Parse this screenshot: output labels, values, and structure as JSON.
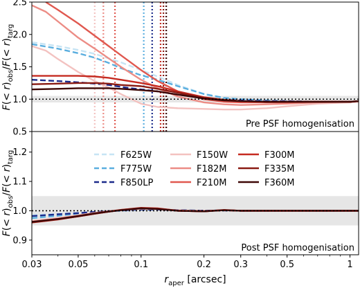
{
  "chart_data": [
    {
      "type": "line",
      "panel": "top",
      "annotation": "Pre PSF homogenisation",
      "ylabel": "F(<r)obs/F(<r)targ",
      "xscale": "log",
      "xlim": [
        0.03,
        1.1
      ],
      "ylim": [
        0.5,
        2.5
      ],
      "yticks": [
        "0.5",
        "1.0",
        "1.5",
        "2.0",
        "2.5"
      ],
      "reference_line": 1.0,
      "band": [
        0.95,
        1.05
      ],
      "series": [
        {
          "name": "F625W",
          "style": "dashed",
          "color": "#c6e4f4",
          "x": [
            0.03,
            0.04,
            0.05,
            0.06,
            0.07,
            0.08,
            0.1,
            0.12,
            0.15,
            0.2,
            0.25,
            0.3,
            0.4,
            0.5,
            0.7,
            1.0,
            1.1
          ],
          "y": [
            1.88,
            1.82,
            1.76,
            1.7,
            1.63,
            1.57,
            1.45,
            1.35,
            1.22,
            1.08,
            1.02,
            0.99,
            0.97,
            0.96,
            0.96,
            0.96,
            0.97
          ]
        },
        {
          "name": "F775W",
          "style": "dashed",
          "color": "#5aaedf",
          "x": [
            0.03,
            0.04,
            0.05,
            0.06,
            0.07,
            0.08,
            0.1,
            0.12,
            0.15,
            0.2,
            0.25,
            0.3,
            0.4,
            0.5,
            0.7,
            1.0,
            1.1
          ],
          "y": [
            1.85,
            1.78,
            1.71,
            1.64,
            1.56,
            1.48,
            1.37,
            1.3,
            1.2,
            1.08,
            1.02,
            1.0,
            0.98,
            0.97,
            0.96,
            0.96,
            0.97
          ]
        },
        {
          "name": "F850LP",
          "style": "dashed",
          "color": "#1b2a8a",
          "x": [
            0.03,
            0.04,
            0.05,
            0.06,
            0.07,
            0.08,
            0.1,
            0.12,
            0.15,
            0.2,
            0.25,
            0.3,
            0.4,
            0.5,
            0.7,
            1.0,
            1.1
          ],
          "y": [
            1.3,
            1.28,
            1.26,
            1.24,
            1.22,
            1.19,
            1.15,
            1.12,
            1.07,
            1.02,
            0.99,
            0.98,
            0.97,
            0.97,
            0.96,
            0.96,
            0.97
          ]
        },
        {
          "name": "F150W",
          "style": "solid",
          "color": "#f3c2c0",
          "x": [
            0.03,
            0.035,
            0.04,
            0.05,
            0.06,
            0.07,
            0.08,
            0.09,
            0.1,
            0.12,
            0.15,
            0.2,
            0.25,
            0.3,
            0.4,
            0.5,
            0.7,
            1.0,
            1.1
          ],
          "y": [
            1.82,
            1.75,
            1.62,
            1.42,
            1.28,
            1.18,
            1.08,
            1.0,
            0.93,
            0.88,
            0.86,
            0.85,
            0.84,
            0.84,
            0.86,
            0.89,
            0.93,
            0.95,
            0.96
          ]
        },
        {
          "name": "F182M",
          "style": "solid",
          "color": "#ec8c85",
          "x": [
            0.03,
            0.035,
            0.04,
            0.05,
            0.06,
            0.07,
            0.08,
            0.1,
            0.12,
            0.15,
            0.2,
            0.25,
            0.3,
            0.4,
            0.5,
            0.7,
            1.0,
            1.1
          ],
          "y": [
            2.45,
            2.35,
            2.2,
            1.95,
            1.78,
            1.63,
            1.5,
            1.3,
            1.17,
            1.04,
            0.95,
            0.92,
            0.91,
            0.92,
            0.93,
            0.95,
            0.96,
            0.97
          ]
        },
        {
          "name": "F210M",
          "style": "solid",
          "color": "#e0584f",
          "x": [
            0.035,
            0.04,
            0.05,
            0.06,
            0.07,
            0.08,
            0.1,
            0.12,
            0.15,
            0.2,
            0.25,
            0.3,
            0.4,
            0.5,
            0.7,
            1.0,
            1.1
          ],
          "y": [
            2.5,
            2.38,
            2.17,
            1.98,
            1.82,
            1.68,
            1.45,
            1.28,
            1.12,
            1.0,
            0.96,
            0.95,
            0.95,
            0.95,
            0.96,
            0.96,
            0.97
          ]
        },
        {
          "name": "F300M",
          "style": "solid",
          "color": "#c52a20",
          "x": [
            0.03,
            0.04,
            0.05,
            0.06,
            0.07,
            0.08,
            0.1,
            0.12,
            0.15,
            0.2,
            0.25,
            0.3,
            0.4,
            0.5,
            0.7,
            1.0,
            1.1
          ],
          "y": [
            1.36,
            1.36,
            1.36,
            1.35,
            1.33,
            1.3,
            1.25,
            1.2,
            1.12,
            1.03,
            0.99,
            0.97,
            0.96,
            0.96,
            0.96,
            0.96,
            0.97
          ]
        },
        {
          "name": "F335M",
          "style": "solid",
          "color": "#8a1a12",
          "x": [
            0.03,
            0.04,
            0.05,
            0.06,
            0.07,
            0.08,
            0.1,
            0.12,
            0.15,
            0.2,
            0.25,
            0.3,
            0.4,
            0.5,
            0.7,
            1.0,
            1.1
          ],
          "y": [
            1.23,
            1.24,
            1.25,
            1.25,
            1.24,
            1.22,
            1.2,
            1.16,
            1.1,
            1.02,
            0.99,
            0.97,
            0.96,
            0.96,
            0.96,
            0.96,
            0.97
          ]
        },
        {
          "name": "F360M",
          "style": "solid",
          "color": "#3d0705",
          "x": [
            0.03,
            0.04,
            0.05,
            0.06,
            0.07,
            0.08,
            0.1,
            0.12,
            0.15,
            0.2,
            0.25,
            0.3,
            0.4,
            0.5,
            0.7,
            1.0,
            1.1
          ],
          "y": [
            1.15,
            1.16,
            1.17,
            1.17,
            1.17,
            1.16,
            1.14,
            1.12,
            1.07,
            1.01,
            0.98,
            0.97,
            0.96,
            0.96,
            0.96,
            0.96,
            0.97
          ]
        }
      ],
      "vlines": [
        {
          "x": 0.06,
          "color": "#f3c2c0"
        },
        {
          "x": 0.066,
          "color": "#ec8c85"
        },
        {
          "x": 0.075,
          "color": "#e0584f"
        },
        {
          "x": 0.103,
          "color": "#5aaedf"
        },
        {
          "x": 0.113,
          "color": "#1b2a8a"
        },
        {
          "x": 0.124,
          "color": "#c52a20"
        },
        {
          "x": 0.128,
          "color": "#8a1a12"
        },
        {
          "x": 0.132,
          "color": "#3d0705"
        }
      ]
    },
    {
      "type": "line",
      "panel": "bottom",
      "annotation": "Post PSF homogenisation",
      "ylabel": "F(<r)obs/F(<r)targ",
      "xlabel": "raper [arcsec]",
      "xscale": "log",
      "xlim": [
        0.03,
        1.1
      ],
      "ylim": [
        0.85,
        1.27
      ],
      "yticks": [
        "0.9",
        "1.0",
        "1.1",
        "1.2"
      ],
      "xticks": [
        "0.03",
        "0.05",
        "0.1",
        "0.2",
        "0.3",
        "0.5",
        "1"
      ],
      "reference_line": 1.0,
      "band": [
        0.95,
        1.05
      ],
      "series": [
        {
          "name": "F625W",
          "style": "dashed",
          "color": "#c6e4f4",
          "x": [
            0.03,
            0.04,
            0.05,
            0.06,
            0.07,
            0.08,
            0.1,
            0.12,
            0.15,
            0.2,
            0.25,
            0.3,
            0.4,
            0.5,
            0.7,
            1.0,
            1.1
          ],
          "y": [
            0.985,
            0.99,
            0.993,
            0.996,
            0.998,
            1.0,
            1.003,
            1.004,
            1.002,
            1.0,
            1.002,
            1.0,
            1.0,
            1.0,
            1.0,
            1.0,
            1.0
          ]
        },
        {
          "name": "F775W",
          "style": "dashed",
          "color": "#5aaedf",
          "x": [
            0.03,
            0.04,
            0.05,
            0.06,
            0.07,
            0.08,
            0.1,
            0.12,
            0.15,
            0.2,
            0.25,
            0.3,
            0.4,
            0.5,
            0.7,
            1.0,
            1.1
          ],
          "y": [
            0.975,
            0.983,
            0.99,
            0.995,
            0.998,
            1.0,
            1.004,
            1.005,
            1.002,
            1.0,
            1.002,
            1.0,
            1.0,
            1.0,
            1.0,
            1.0,
            1.0
          ]
        },
        {
          "name": "F850LP",
          "style": "dashed",
          "color": "#1b2a8a",
          "x": [
            0.03,
            0.04,
            0.05,
            0.06,
            0.07,
            0.08,
            0.1,
            0.12,
            0.15,
            0.2,
            0.25,
            0.3,
            0.4,
            0.5,
            0.7,
            1.0,
            1.1
          ],
          "y": [
            0.982,
            0.988,
            0.992,
            0.996,
            0.999,
            1.001,
            1.004,
            1.004,
            1.002,
            1.0,
            1.001,
            1.0,
            1.0,
            1.0,
            1.0,
            1.0,
            1.0
          ]
        },
        {
          "name": "F150W",
          "style": "solid",
          "color": "#f3c2c0",
          "x": [
            0.03,
            0.04,
            0.05,
            0.06,
            0.07,
            0.08,
            0.1,
            0.12,
            0.15,
            0.2,
            0.25,
            0.3,
            0.4,
            0.5,
            0.7,
            1.0,
            1.1
          ],
          "y": [
            0.965,
            0.975,
            0.985,
            0.993,
            0.998,
            1.002,
            1.007,
            1.006,
            1.001,
            0.999,
            1.002,
            1.0,
            1.0,
            1.0,
            1.0,
            1.0,
            1.0
          ]
        },
        {
          "name": "F182M",
          "style": "solid",
          "color": "#ec8c85",
          "x": [
            0.03,
            0.04,
            0.05,
            0.06,
            0.07,
            0.08,
            0.1,
            0.12,
            0.15,
            0.2,
            0.25,
            0.3,
            0.4,
            0.5,
            0.7,
            1.0,
            1.1
          ],
          "y": [
            0.963,
            0.973,
            0.983,
            0.992,
            0.998,
            1.002,
            1.008,
            1.007,
            1.001,
            0.999,
            1.002,
            1.0,
            1.0,
            1.0,
            1.0,
            1.0,
            1.0
          ]
        },
        {
          "name": "F210M",
          "style": "solid",
          "color": "#e0584f",
          "x": [
            0.03,
            0.04,
            0.05,
            0.06,
            0.07,
            0.08,
            0.1,
            0.12,
            0.15,
            0.2,
            0.25,
            0.3,
            0.4,
            0.5,
            0.7,
            1.0,
            1.1
          ],
          "y": [
            0.962,
            0.972,
            0.982,
            0.991,
            0.998,
            1.003,
            1.009,
            1.007,
            1.0,
            0.999,
            1.002,
            1.0,
            1.0,
            1.0,
            1.0,
            1.0,
            1.0
          ]
        },
        {
          "name": "F300M",
          "style": "solid",
          "color": "#c52a20",
          "x": [
            0.03,
            0.04,
            0.05,
            0.06,
            0.07,
            0.08,
            0.1,
            0.12,
            0.15,
            0.2,
            0.25,
            0.3,
            0.4,
            0.5,
            0.7,
            1.0,
            1.1
          ],
          "y": [
            0.96,
            0.97,
            0.981,
            0.99,
            0.997,
            1.003,
            1.01,
            1.008,
            1.0,
            0.998,
            1.003,
            1.0,
            1.0,
            1.0,
            1.0,
            1.0,
            1.0
          ]
        },
        {
          "name": "F335M",
          "style": "solid",
          "color": "#8a1a12",
          "x": [
            0.03,
            0.04,
            0.05,
            0.06,
            0.07,
            0.08,
            0.1,
            0.12,
            0.15,
            0.2,
            0.25,
            0.3,
            0.4,
            0.5,
            0.7,
            1.0,
            1.1
          ],
          "y": [
            0.961,
            0.971,
            0.981,
            0.99,
            0.997,
            1.002,
            1.009,
            1.007,
            1.0,
            0.998,
            1.002,
            1.0,
            1.0,
            1.0,
            1.0,
            1.0,
            1.0
          ]
        },
        {
          "name": "F360M",
          "style": "solid",
          "color": "#3d0705",
          "x": [
            0.03,
            0.04,
            0.05,
            0.06,
            0.07,
            0.08,
            0.1,
            0.12,
            0.15,
            0.2,
            0.25,
            0.3,
            0.4,
            0.5,
            0.7,
            1.0,
            1.1
          ],
          "y": [
            0.962,
            0.972,
            0.982,
            0.991,
            0.997,
            1.002,
            1.008,
            1.006,
            1.0,
            0.998,
            1.002,
            1.0,
            1.0,
            1.0,
            1.0,
            1.0,
            1.0
          ]
        }
      ]
    }
  ]
}
